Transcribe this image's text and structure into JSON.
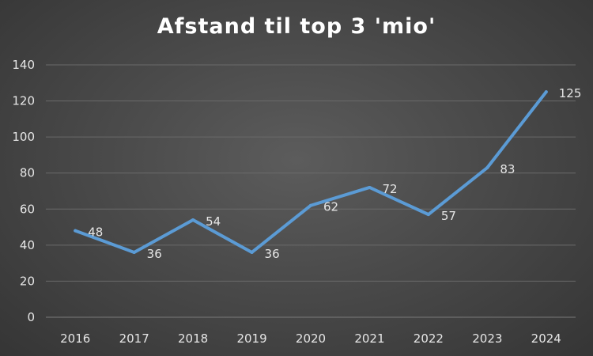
{
  "chart_data": {
    "type": "line",
    "title": "Afstand til top 3 'mio'",
    "categories": [
      "2016",
      "2017",
      "2018",
      "2019",
      "2020",
      "2021",
      "2022",
      "2023",
      "2024"
    ],
    "series": [
      {
        "values": [
          48,
          36,
          54,
          36,
          62,
          72,
          57,
          83,
          125
        ],
        "color": "#5b9bd5"
      }
    ],
    "data_labels": [
      "48",
      "36",
      "54",
      "36",
      "62",
      "72",
      "57",
      "83",
      "125"
    ],
    "yticks": [
      "0",
      "20",
      "40",
      "60",
      "80",
      "100",
      "120",
      "140"
    ],
    "ylim": [
      0,
      140
    ],
    "grid": true,
    "legend": "none",
    "background": "#4a4a4a",
    "gridline_color": "#6a6a6a",
    "text_color": "#e6e6e6"
  }
}
